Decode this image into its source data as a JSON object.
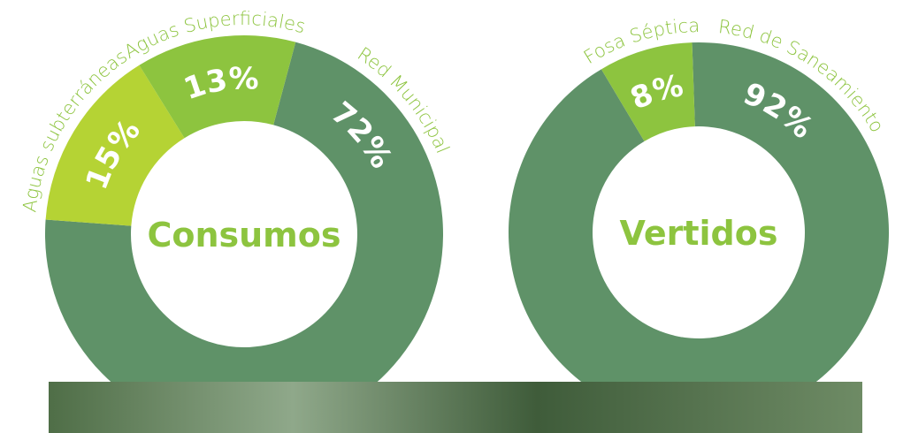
{
  "chart_data": [
    {
      "type": "donut",
      "title": "Consumos",
      "categories": [
        "Red Municipal",
        "Aguas subterráneas",
        "Aguas Superficiales"
      ],
      "values": [
        72,
        15,
        13
      ],
      "value_labels": [
        "72%",
        "15%",
        "13%"
      ],
      "colors": [
        "#5f9268",
        "#b5d334",
        "#8dc43f"
      ]
    },
    {
      "type": "donut",
      "title": "Vertidos",
      "categories": [
        "Red de Saneamiento",
        "Fosa Séptica"
      ],
      "values": [
        92,
        8
      ],
      "value_labels": [
        "92%",
        "8%"
      ],
      "colors": [
        "#5f9268",
        "#8dc43f"
      ]
    }
  ]
}
